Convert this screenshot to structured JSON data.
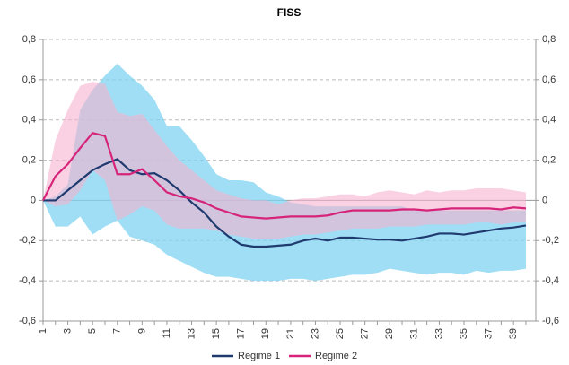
{
  "chart_data": {
    "type": "line",
    "title": "FISS",
    "categories": [
      1,
      null,
      3,
      null,
      5,
      null,
      7,
      null,
      9,
      null,
      11,
      null,
      13,
      null,
      15,
      null,
      17,
      null,
      19,
      null,
      21,
      null,
      23,
      null,
      25,
      null,
      27,
      null,
      29,
      null,
      31,
      null,
      33,
      null,
      35,
      null,
      37,
      null,
      39,
      null
    ],
    "ylim": [
      -0.6,
      0.8
    ],
    "yticks": [
      {
        "value": 0.8,
        "label": "0,8"
      },
      {
        "value": 0.6,
        "label": "0,6"
      },
      {
        "value": 0.4,
        "label": "0,4"
      },
      {
        "value": 0.2,
        "label": "0,2"
      },
      0,
      {
        "value": -0.2,
        "label": "-0,2"
      },
      {
        "value": -0.4,
        "label": "-0,4"
      },
      {
        "value": -0.6,
        "label": "-0,6"
      }
    ],
    "y2lim": [
      -0.6,
      0.8
    ],
    "y2ticks": [
      {
        "value": 0.8,
        "label": "0,8"
      },
      {
        "value": 0.6,
        "label": "0,6"
      },
      {
        "value": 0.4,
        "label": "0,4"
      },
      {
        "value": 0.2,
        "label": "0,2"
      },
      0,
      {
        "value": -0.2,
        "label": "-0,2"
      },
      {
        "value": -0.4,
        "label": "-0,4"
      },
      {
        "value": -0.6,
        "label": "-0,6"
      }
    ],
    "grid": true,
    "legend": "bottom",
    "series": [
      {
        "name": "Regime 1",
        "color": "#1f3a6e",
        "band_color": "#7fd3f1",
        "values": [
          0,
          0,
          0.05,
          0.1,
          0.15,
          0.18,
          0.205,
          0.15,
          0.13,
          0.135,
          0.1,
          0.05,
          -0.01,
          -0.06,
          -0.13,
          -0.18,
          -0.22,
          -0.23,
          -0.23,
          -0.225,
          -0.22,
          -0.2,
          -0.19,
          -0.2,
          -0.185,
          -0.185,
          -0.19,
          -0.195,
          -0.195,
          -0.2,
          -0.19,
          -0.18,
          -0.165,
          -0.165,
          -0.17,
          -0.16,
          -0.15,
          -0.14,
          -0.135,
          -0.125
        ],
        "upper": [
          0,
          0.02,
          0.08,
          0.45,
          0.55,
          0.62,
          0.68,
          0.62,
          0.57,
          0.5,
          0.37,
          0.37,
          0.3,
          0.22,
          0.13,
          0.1,
          0.1,
          0.09,
          0.04,
          0.02,
          -0.01,
          -0.02,
          -0.03,
          -0.03,
          -0.03,
          -0.03,
          -0.03,
          -0.03,
          -0.03,
          -0.03,
          -0.05,
          -0.05,
          -0.05,
          -0.05,
          -0.05,
          -0.05,
          -0.05,
          -0.05,
          -0.05,
          -0.05
        ],
        "lower": [
          0,
          -0.13,
          -0.13,
          -0.08,
          -0.17,
          -0.13,
          -0.1,
          -0.18,
          -0.2,
          -0.22,
          -0.27,
          -0.3,
          -0.33,
          -0.36,
          -0.38,
          -0.38,
          -0.39,
          -0.4,
          -0.4,
          -0.4,
          -0.39,
          -0.39,
          -0.4,
          -0.39,
          -0.38,
          -0.37,
          -0.37,
          -0.36,
          -0.34,
          -0.35,
          -0.36,
          -0.37,
          -0.36,
          -0.36,
          -0.37,
          -0.35,
          -0.36,
          -0.35,
          -0.35,
          -0.34
        ]
      },
      {
        "name": "Regime 2",
        "color": "#d6247a",
        "band_color": "#f6b3cf",
        "values": [
          0,
          0.12,
          0.18,
          0.26,
          0.335,
          0.32,
          0.13,
          0.13,
          0.155,
          0.1,
          0.04,
          0.02,
          0.01,
          -0.01,
          -0.04,
          -0.06,
          -0.08,
          -0.085,
          -0.09,
          -0.085,
          -0.08,
          -0.08,
          -0.08,
          -0.075,
          -0.06,
          -0.05,
          -0.05,
          -0.05,
          -0.05,
          -0.045,
          -0.045,
          -0.05,
          -0.045,
          -0.04,
          -0.04,
          -0.04,
          -0.04,
          -0.045,
          -0.035,
          -0.04
        ],
        "upper": [
          0,
          0.3,
          0.45,
          0.57,
          0.59,
          0.58,
          0.44,
          0.42,
          0.43,
          0.35,
          0.27,
          0.2,
          0.15,
          0.1,
          0.05,
          0.03,
          0.01,
          0,
          0,
          -0.02,
          0,
          0.01,
          0.01,
          0.02,
          0.03,
          0.03,
          0.02,
          0.04,
          0.05,
          0.04,
          0.03,
          0.05,
          0.04,
          0.05,
          0.05,
          0.06,
          0.06,
          0.06,
          0.05,
          0.04
        ],
        "lower": [
          0,
          -0.03,
          -0.02,
          0.05,
          0.15,
          0.1,
          -0.1,
          -0.07,
          -0.03,
          -0.05,
          -0.12,
          -0.14,
          -0.14,
          -0.14,
          -0.15,
          -0.17,
          -0.18,
          -0.19,
          -0.19,
          -0.19,
          -0.18,
          -0.17,
          -0.17,
          -0.16,
          -0.15,
          -0.14,
          -0.14,
          -0.14,
          -0.13,
          -0.13,
          -0.13,
          -0.12,
          -0.12,
          -0.12,
          -0.12,
          -0.11,
          -0.11,
          -0.12,
          -0.11,
          -0.11
        ]
      }
    ]
  }
}
